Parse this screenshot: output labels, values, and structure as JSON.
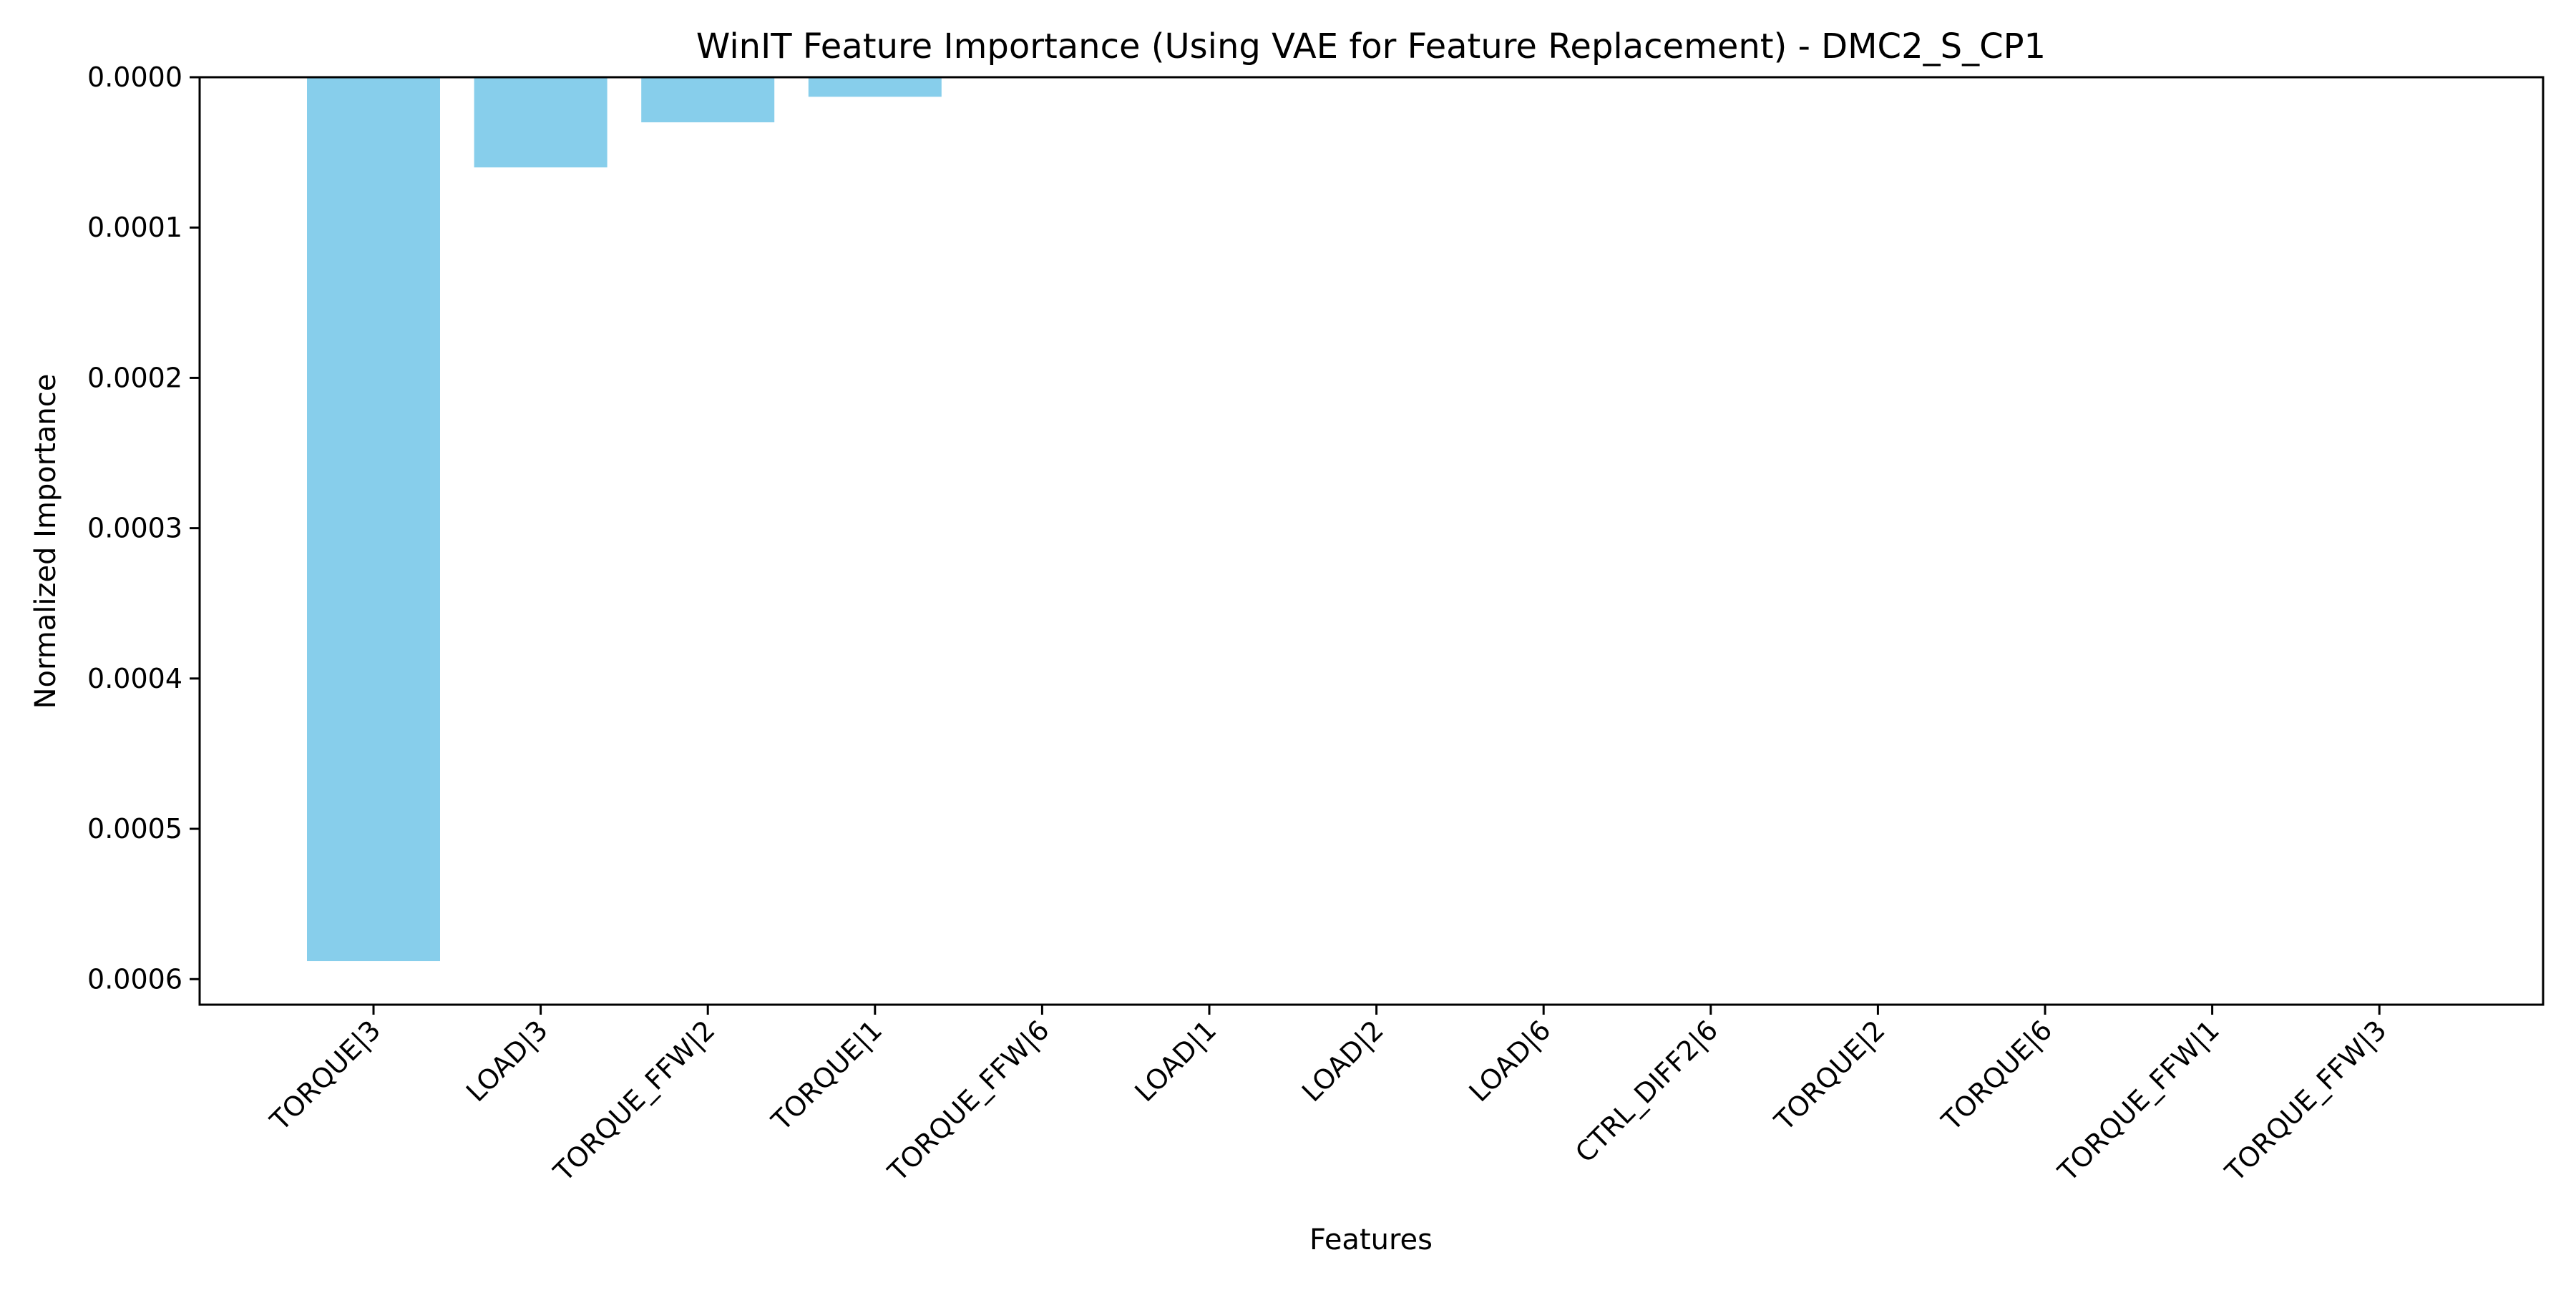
{
  "chart_data": {
    "type": "bar",
    "title": "WinIT Feature Importance (Using VAE for Feature Replacement) - DMC2_S_CP1",
    "xlabel": "Features",
    "ylabel": "Normalized Importance",
    "categories": [
      "TORQUE|3",
      "LOAD|3",
      "TORQUE_FFW|2",
      "TORQUE|1",
      "TORQUE_FFW|6",
      "LOAD|1",
      "LOAD|2",
      "LOAD|6",
      "CTRL_DIFF2|6",
      "TORQUE|2",
      "TORQUE|6",
      "TORQUE_FFW|1",
      "TORQUE_FFW|3"
    ],
    "values": [
      0.000588,
      6e-05,
      3e-05,
      1.3e-05,
      0,
      0,
      0,
      0,
      0,
      0,
      0,
      0,
      0
    ],
    "ylim": [
      0,
      0.000617
    ],
    "y_inverted": true,
    "yticks": [
      0,
      0.0001,
      0.0002,
      0.0003,
      0.0004,
      0.0005,
      0.0006
    ],
    "ytick_labels": [
      "0.0000",
      "0.0001",
      "0.0002",
      "0.0003",
      "0.0004",
      "0.0005",
      "0.0006"
    ],
    "bar_color": "#87CEEB",
    "grid": false,
    "legend": "none"
  }
}
